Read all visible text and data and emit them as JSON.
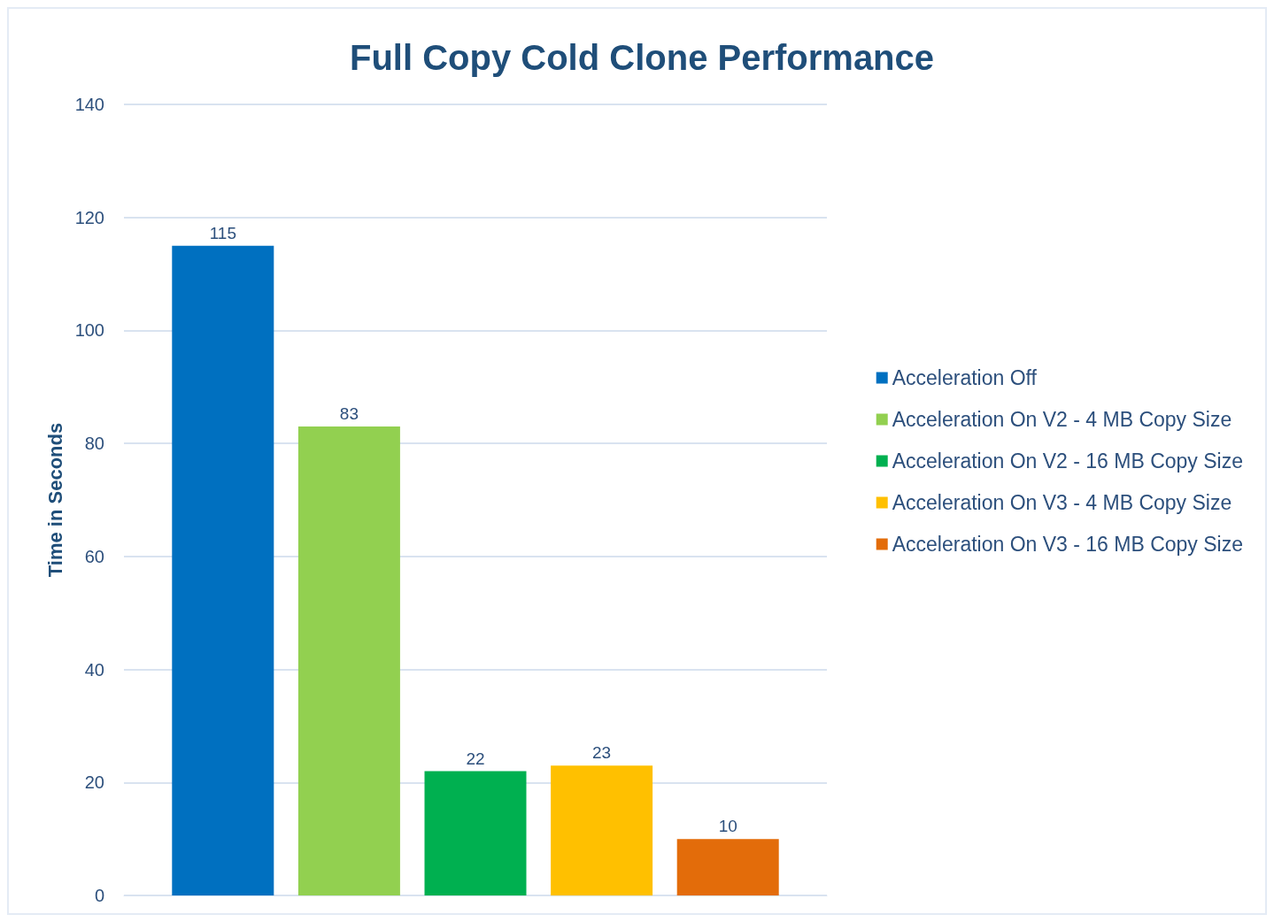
{
  "chart_data": {
    "type": "bar",
    "title": "Full Copy Cold Clone Performance",
    "ylabel": "Time in Seconds",
    "categories": [
      null
    ],
    "series": [
      {
        "name": "Acceleration Off",
        "color": "#0070c0",
        "values": [
          115
        ]
      },
      {
        "name": "Acceleration On V2 - 4 MB Copy Size",
        "color": "#92d050",
        "values": [
          83
        ]
      },
      {
        "name": "Acceleration On V2 - 16 MB Copy Size",
        "color": "#00b050",
        "values": [
          22
        ]
      },
      {
        "name": "Acceleration On V3 - 4 MB Copy Size",
        "color": "#ffc000",
        "values": [
          23
        ]
      },
      {
        "name": "Acceleration On V3 - 16 MB Copy Size",
        "color": "#e36c0a",
        "values": [
          10
        ]
      }
    ],
    "ylim": [
      0,
      140
    ],
    "yticks": [
      0,
      20,
      40,
      60,
      80,
      100,
      120,
      140
    ],
    "grid": "y",
    "legend": "right",
    "data_labels": true
  }
}
